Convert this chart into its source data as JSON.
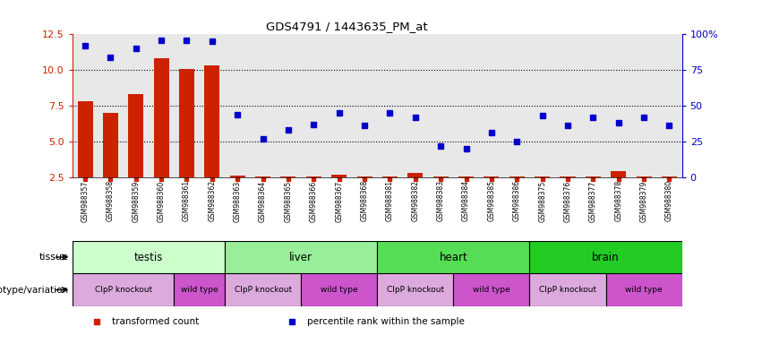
{
  "title": "GDS4791 / 1443635_PM_at",
  "samples": [
    "GSM988357",
    "GSM988358",
    "GSM988359",
    "GSM988360",
    "GSM988361",
    "GSM988362",
    "GSM988363",
    "GSM988364",
    "GSM988365",
    "GSM988366",
    "GSM988367",
    "GSM988368",
    "GSM988381",
    "GSM988382",
    "GSM988383",
    "GSM988384",
    "GSM988385",
    "GSM988386",
    "GSM988375",
    "GSM988376",
    "GSM988377",
    "GSM988378",
    "GSM988379",
    "GSM988380"
  ],
  "transformed_count": [
    7.8,
    7.0,
    8.3,
    10.8,
    10.1,
    10.35,
    2.6,
    2.55,
    2.55,
    2.55,
    2.7,
    2.55,
    2.55,
    2.8,
    2.55,
    2.55,
    2.55,
    2.55,
    2.55,
    2.55,
    2.55,
    2.9,
    2.55,
    2.55
  ],
  "percentile_rank": [
    92,
    84,
    90,
    96,
    96,
    95,
    44,
    27,
    33,
    37,
    45,
    36,
    45,
    42,
    22,
    20,
    31,
    25,
    43,
    36,
    42,
    38,
    42,
    36
  ],
  "ylim_left": [
    2.5,
    12.5
  ],
  "ylim_right": [
    0,
    100
  ],
  "yticks_left": [
    2.5,
    5.0,
    7.5,
    10.0,
    12.5
  ],
  "yticks_right": [
    0,
    25,
    50,
    75,
    100
  ],
  "ytick_labels_right": [
    "0",
    "25",
    "50",
    "75",
    "100%"
  ],
  "bar_color": "#cc2200",
  "dot_color": "#0000cc",
  "tissue_row": [
    {
      "label": "testis",
      "start": 0,
      "end": 6,
      "color": "#ccffcc"
    },
    {
      "label": "liver",
      "start": 6,
      "end": 12,
      "color": "#99ee99"
    },
    {
      "label": "heart",
      "start": 12,
      "end": 18,
      "color": "#55dd55"
    },
    {
      "label": "brain",
      "start": 18,
      "end": 24,
      "color": "#22cc22"
    }
  ],
  "genotype_row": [
    {
      "label": "ClpP knockout",
      "start": 0,
      "end": 4,
      "color": "#ddaadd"
    },
    {
      "label": "wild type",
      "start": 4,
      "end": 6,
      "color": "#cc55cc"
    },
    {
      "label": "ClpP knockout",
      "start": 6,
      "end": 9,
      "color": "#ddaadd"
    },
    {
      "label": "wild type",
      "start": 9,
      "end": 12,
      "color": "#cc55cc"
    },
    {
      "label": "ClpP knockout",
      "start": 12,
      "end": 15,
      "color": "#ddaadd"
    },
    {
      "label": "wild type",
      "start": 15,
      "end": 18,
      "color": "#cc55cc"
    },
    {
      "label": "ClpP knockout",
      "start": 18,
      "end": 21,
      "color": "#ddaadd"
    },
    {
      "label": "wild type",
      "start": 21,
      "end": 24,
      "color": "#cc55cc"
    }
  ],
  "legend_items": [
    {
      "label": "transformed count",
      "color": "#cc2200"
    },
    {
      "label": "percentile rank within the sample",
      "color": "#0000cc"
    }
  ],
  "tissue_label": "tissue",
  "genotype_label": "genotype/variation",
  "background_color": "#ffffff",
  "chart_bg": "#e8e8e8"
}
